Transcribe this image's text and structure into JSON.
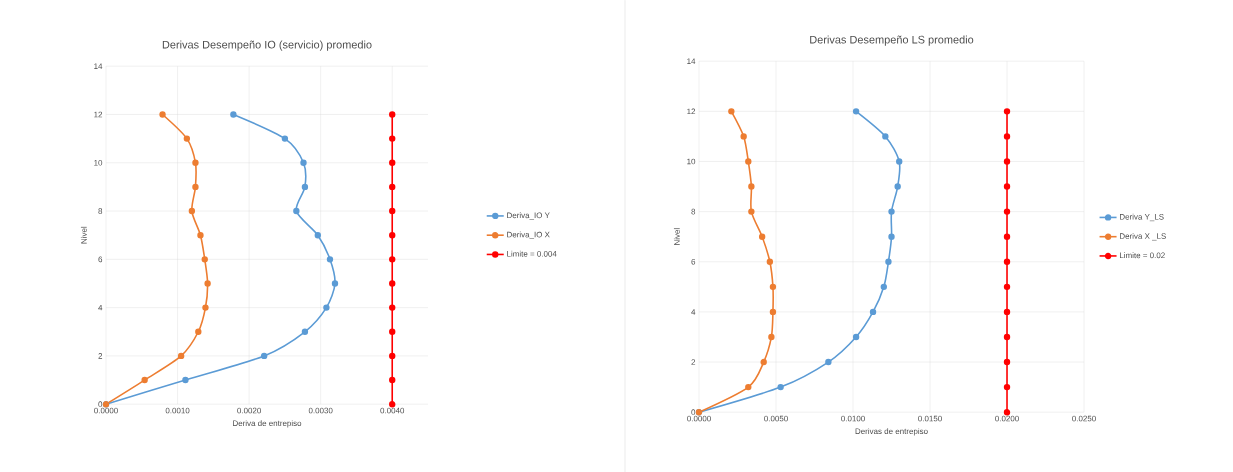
{
  "chart_data": [
    {
      "type": "line",
      "title": "Derivas Desempeño IO (servicio) promedio",
      "xlabel": "Deriva de entrepiso",
      "ylabel": "Nivel",
      "xlim": [
        0,
        0.0045
      ],
      "xticks": [
        {
          "value": 0,
          "label": "0.0000"
        },
        {
          "value": 0.001,
          "label": "0.0010"
        },
        {
          "value": 0.002,
          "label": "0.0020"
        },
        {
          "value": 0.003,
          "label": "0.0030"
        },
        {
          "value": 0.004,
          "label": "0.0040"
        }
      ],
      "ylim": [
        0,
        14
      ],
      "yticks": [
        0,
        2,
        4,
        6,
        8,
        10,
        12,
        14
      ],
      "grid": true,
      "legend": "right",
      "marker": "circle",
      "line_style": "solid",
      "series": [
        {
          "name": "Deriva_IO Y",
          "color": "#5b9bd5",
          "x": [
            0,
            0.00111,
            0.00221,
            0.00278,
            0.00308,
            0.0032,
            0.00313,
            0.00296,
            0.00266,
            0.00278,
            0.00276,
            0.0025,
            0.00178
          ],
          "values": [
            0,
            1,
            2,
            3,
            4,
            5,
            6,
            7,
            8,
            9,
            10,
            11,
            12
          ]
        },
        {
          "name": "Deriva_IO X",
          "color": "#ed7d31",
          "x": [
            0,
            0.00054,
            0.00105,
            0.00129,
            0.00139,
            0.00142,
            0.00138,
            0.00132,
            0.0012,
            0.00125,
            0.00125,
            0.00113,
            0.00079
          ],
          "values": [
            0,
            1,
            2,
            3,
            4,
            5,
            6,
            7,
            8,
            9,
            10,
            11,
            12
          ]
        },
        {
          "name": "Limite = 0.004",
          "color": "#ff0000",
          "x": [
            0.004,
            0.004,
            0.004,
            0.004,
            0.004,
            0.004,
            0.004,
            0.004,
            0.004,
            0.004,
            0.004,
            0.004,
            0.004
          ],
          "values": [
            0,
            1,
            2,
            3,
            4,
            5,
            6,
            7,
            8,
            9,
            10,
            11,
            12
          ]
        }
      ]
    },
    {
      "type": "line",
      "title": "Derivas Desempeño LS promedio",
      "xlabel": "Derivas de entrepiso",
      "ylabel": "Nivel",
      "xlim": [
        0,
        0.025
      ],
      "xticks": [
        {
          "value": 0,
          "label": "0.0000"
        },
        {
          "value": 0.005,
          "label": "0.0050"
        },
        {
          "value": 0.01,
          "label": "0.0100"
        },
        {
          "value": 0.015,
          "label": "0.0150"
        },
        {
          "value": 0.02,
          "label": "0.0200"
        },
        {
          "value": 0.025,
          "label": "0.0250"
        }
      ],
      "ylim": [
        0,
        14
      ],
      "yticks": [
        0,
        2,
        4,
        6,
        8,
        10,
        12,
        14
      ],
      "grid": true,
      "legend": "right",
      "marker": "circle",
      "line_style": "solid",
      "series": [
        {
          "name": "Deriva Y_LS",
          "color": "#5b9bd5",
          "x": [
            0,
            0.0053,
            0.0084,
            0.0102,
            0.0113,
            0.012,
            0.0123,
            0.0125,
            0.0125,
            0.0129,
            0.013,
            0.0121,
            0.0102
          ],
          "values": [
            0,
            1,
            2,
            3,
            4,
            5,
            6,
            7,
            8,
            9,
            10,
            11,
            12
          ]
        },
        {
          "name": "Deriva X _LS",
          "color": "#ed7d31",
          "x": [
            0,
            0.0032,
            0.0042,
            0.0047,
            0.0048,
            0.0048,
            0.0046,
            0.0041,
            0.0034,
            0.0034,
            0.0032,
            0.0029,
            0.0021
          ],
          "values": [
            0,
            1,
            2,
            3,
            4,
            5,
            6,
            7,
            8,
            9,
            10,
            11,
            12
          ]
        },
        {
          "name": "Limite = 0.02",
          "color": "#ff0000",
          "x": [
            0.02,
            0.02,
            0.02,
            0.02,
            0.02,
            0.02,
            0.02,
            0.02,
            0.02,
            0.02,
            0.02,
            0.02,
            0.02
          ],
          "values": [
            0,
            1,
            2,
            3,
            4,
            5,
            6,
            7,
            8,
            9,
            10,
            11,
            12
          ]
        }
      ]
    }
  ]
}
